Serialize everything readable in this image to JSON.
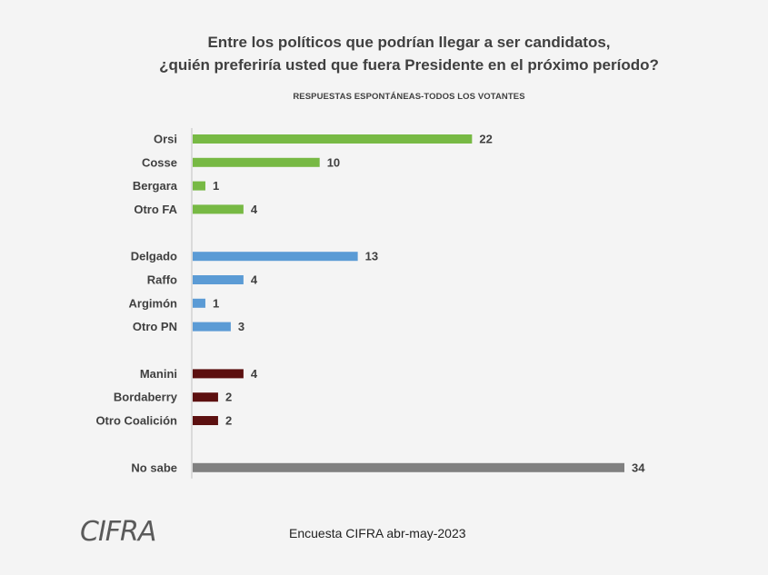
{
  "header": {
    "title_line1": "Entre los políticos que podrían llegar a ser candidatos,",
    "title_line2": "¿quién preferiría usted que fuera Presidente en el próximo período?",
    "subtitle": "RESPUESTAS ESPONTÁNEAS-TODOS LOS VOTANTES"
  },
  "footer": {
    "logo_text": "CIFRA",
    "source": "Encuesta CIFRA abr-may-2023"
  },
  "colors": {
    "FA": "#77b944",
    "PN": "#5b9bd5",
    "Coalicion": "#5c1010",
    "NoSabe": "#808080",
    "axis": "#bfbfbf"
  },
  "chart_data": {
    "type": "bar",
    "orientation": "horizontal",
    "title": "Entre los políticos que podrían llegar a ser candidatos, ¿quién preferiría usted que fuera Presidente en el próximo período?",
    "subtitle": "RESPUESTAS ESPONTÁNEAS-TODOS LOS VOTANTES",
    "xlim": [
      0,
      34
    ],
    "groups": [
      {
        "group": "FA",
        "items": [
          {
            "label": "Orsi",
            "value": 22
          },
          {
            "label": "Cosse",
            "value": 10
          },
          {
            "label": "Bergara",
            "value": 1
          },
          {
            "label": "Otro FA",
            "value": 4
          }
        ]
      },
      {
        "group": "PN",
        "items": [
          {
            "label": "Delgado",
            "value": 13
          },
          {
            "label": "Raffo",
            "value": 4
          },
          {
            "label": "Argimón",
            "value": 1
          },
          {
            "label": "Otro PN",
            "value": 3
          }
        ]
      },
      {
        "group": "Coalicion",
        "items": [
          {
            "label": "Manini",
            "value": 4
          },
          {
            "label": "Bordaberry",
            "value": 2
          },
          {
            "label": "Otro Coalición",
            "value": 2
          }
        ]
      },
      {
        "group": "NoSabe",
        "items": [
          {
            "label": "No sabe",
            "value": 34
          }
        ]
      }
    ]
  }
}
